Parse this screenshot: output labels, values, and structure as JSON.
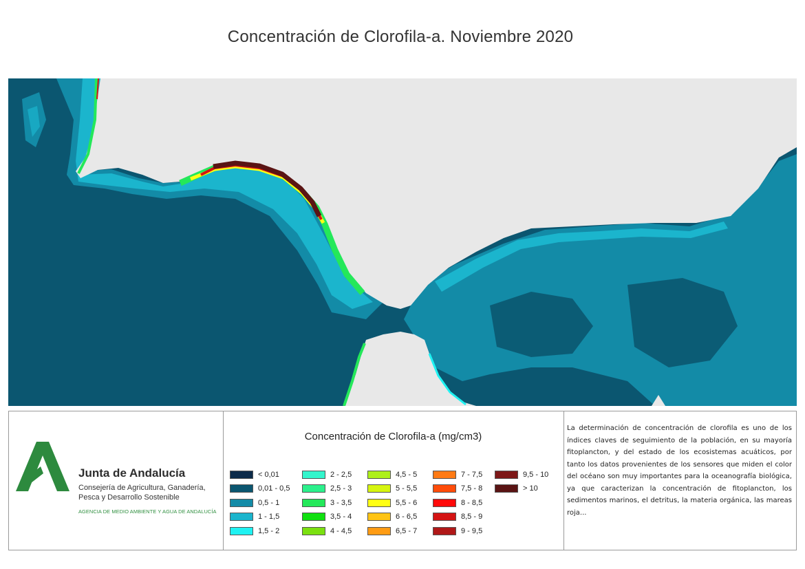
{
  "title": "Concentración de Clorofila-a. Noviembre 2020",
  "map": {
    "colors": {
      "land": "#e8e8e8",
      "deep_sea": "#0b5670",
      "shelf": "#138ba7",
      "coastal": "#1bb5cd"
    }
  },
  "logo": {
    "name": "Junta de Andalucía",
    "dept_line1": "Consejería de Agricultura, Ganadería,",
    "dept_line2": "Pesca y Desarrollo Sostenible",
    "agency": "AGENCIA DE MEDIO AMBIENTE Y AGUA DE ANDALUCÍA",
    "icon": "junta-andalucia-logo",
    "brand_color": "#2d8a3e"
  },
  "legend": {
    "title": "Concentración de Clorofila-a (mg/cm3)",
    "items": [
      {
        "label": "< 0,01",
        "color": "#0d2b4a"
      },
      {
        "label": "0,01 - 0,5",
        "color": "#0b5670"
      },
      {
        "label": "0,5 - 1",
        "color": "#138ba7"
      },
      {
        "label": "1 - 1,5",
        "color": "#1bb5cd"
      },
      {
        "label": "1,5 - 2",
        "color": "#1ff2f2"
      },
      {
        "label": "2 - 2,5",
        "color": "#33f5cc"
      },
      {
        "label": "2,5 - 3",
        "color": "#2cf08c"
      },
      {
        "label": "3 - 3,5",
        "color": "#24e85a"
      },
      {
        "label": "3,5 - 4",
        "color": "#10e010"
      },
      {
        "label": "4 - 4,5",
        "color": "#7be010"
      },
      {
        "label": "4,5 - 5",
        "color": "#aef01a"
      },
      {
        "label": "5 - 5,5",
        "color": "#d6f510"
      },
      {
        "label": "5,5 - 6",
        "color": "#ffff14"
      },
      {
        "label": "6 - 6,5",
        "color": "#ffc414"
      },
      {
        "label": "6,5 - 7",
        "color": "#ff9c14"
      },
      {
        "label": "7 - 7,5",
        "color": "#ff7a14"
      },
      {
        "label": "7,5 - 8",
        "color": "#ff4c0a"
      },
      {
        "label": "8 - 8,5",
        "color": "#ff0a0a"
      },
      {
        "label": "8,5 - 9",
        "color": "#d41414"
      },
      {
        "label": "9 - 9,5",
        "color": "#b01818"
      },
      {
        "label": "9,5 - 10",
        "color": "#7d1818"
      },
      {
        "label": "> 10",
        "color": "#5a1414"
      }
    ]
  },
  "description": "La determinación de concentración de clorofila es uno de los índices claves de seguimiento de la población, en su mayoría fitoplancton, y del estado de los ecosistemas acuáticos, por tanto los datos provenientes de los sensores que miden el color del océano son muy importantes para la oceanografía biológica, ya que caracterizan la concentración de fitoplancton, los sedimentos marinos, el detritus, la materia orgánica, las mareas roja..."
}
